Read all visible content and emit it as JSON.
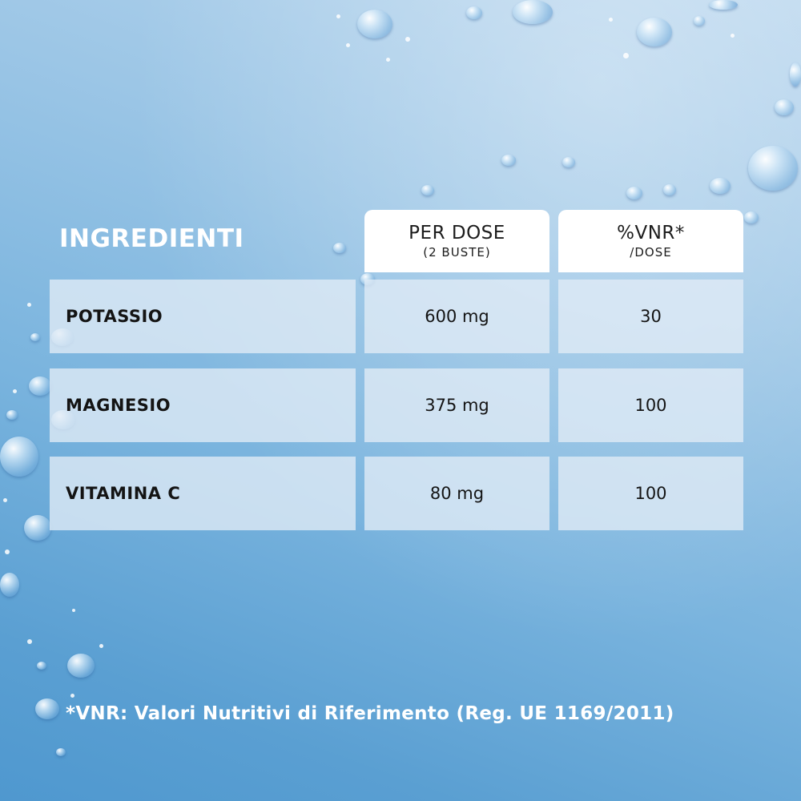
{
  "title": "INGREDIENTI",
  "headers": [
    {
      "main": "PER DOSE",
      "sub": "(2 BUSTE)"
    },
    {
      "main": "%VNR*",
      "sub": "/DOSE"
    }
  ],
  "rows": [
    {
      "name": "POTASSIO",
      "dose": "600 mg",
      "vnr": "30"
    },
    {
      "name": "MAGNESIO",
      "dose": "375 mg",
      "vnr": "100"
    },
    {
      "name": "VITAMINA C",
      "dose": "80 mg",
      "vnr": "100"
    }
  ],
  "footnote": "*VNR: Valori Nutritivi di Riferimento (Reg. UE 1169/2011)",
  "colors": {
    "background": "#7ab4de",
    "header_card": "#ffffff",
    "row_cell": "#e1ecf6",
    "text_dark": "#141414",
    "text_light": "#ffffff"
  }
}
